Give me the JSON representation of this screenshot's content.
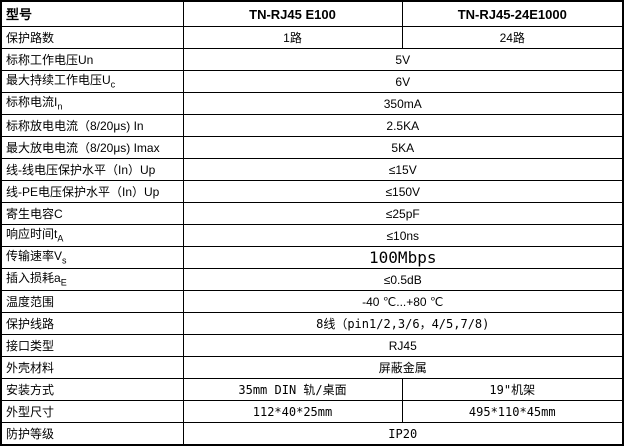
{
  "colors": {
    "border": "#000000",
    "background": "#ffffff",
    "text": "#000000"
  },
  "table": {
    "header": {
      "col1": "型号",
      "col2": "TN-RJ45 E100",
      "col3": "TN-RJ45-24E1000"
    },
    "rows": [
      {
        "label": "保护路数",
        "v1": "1路",
        "v2": "24路"
      },
      {
        "label": "标称工作电压Un",
        "value": "5V"
      },
      {
        "label": "最大持续工作电压U",
        "label_sub": "c",
        "value": "6V"
      },
      {
        "label": "标称电流I",
        "label_sub": "n",
        "value": "350mA"
      },
      {
        "label": "标称放电电流（8/20μs) In",
        "value": "2.5KA"
      },
      {
        "label": "最大放电电流（8/20μs) Imax",
        "value": "5KA"
      },
      {
        "label": "线-线电压保护水平（In）Up",
        "value": "≤15V"
      },
      {
        "label": "线-PE电压保护水平（In）Up",
        "value": "≤150V"
      },
      {
        "label": "寄生电容C",
        "value": "≤25pF"
      },
      {
        "label": "响应时间t",
        "label_sub": "A",
        "value": "≤10ns"
      },
      {
        "label": "传输速率V",
        "label_sub": "s",
        "value": "100Mbps"
      },
      {
        "label": "插入损耗a",
        "label_sub": "E",
        "value": "≤0.5dB"
      },
      {
        "label": "温度范围",
        "value": "-40 ℃...+80 ℃"
      },
      {
        "label": "保护线路",
        "value": "8线（pin1/2,3/6，4/5,7/8)"
      },
      {
        "label": "接口类型",
        "value": "RJ45"
      },
      {
        "label": "外壳材料",
        "value": "屏蔽金属"
      },
      {
        "label": "安装方式",
        "v1": "35mm DIN 轨/桌面",
        "v2": "19\"机架"
      },
      {
        "label": "外型尺寸",
        "v1": "112*40*25mm",
        "v2": "495*110*45mm"
      },
      {
        "label": "防护等级",
        "value": "IP20"
      }
    ]
  }
}
